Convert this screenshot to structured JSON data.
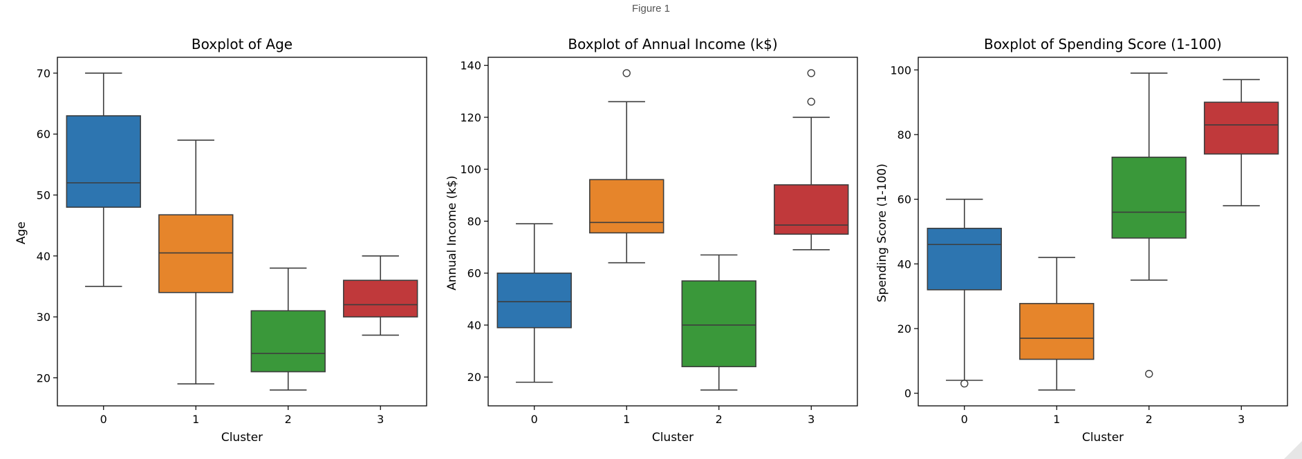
{
  "window": {
    "title": "Figure 1"
  },
  "chart_data": [
    {
      "type": "box",
      "title": "Boxplot of Age",
      "xlabel": "Cluster",
      "ylabel": "Age",
      "ylim": [
        15.4,
        72.6
      ],
      "yticks": [
        20,
        30,
        40,
        50,
        60,
        70
      ],
      "grid": false,
      "categories": [
        "0",
        "1",
        "2",
        "3"
      ],
      "boxes": [
        {
          "cluster": "0",
          "whisker_low": 35,
          "q1": 48,
          "median": 52,
          "q3": 63,
          "whisker_high": 70,
          "outliers": [],
          "color": "#2d75b0"
        },
        {
          "cluster": "1",
          "whisker_low": 19,
          "q1": 34,
          "median": 40.5,
          "q3": 46.75,
          "whisker_high": 59,
          "outliers": [],
          "color": "#e6852b"
        },
        {
          "cluster": "2",
          "whisker_low": 18,
          "q1": 21,
          "median": 24,
          "q3": 31,
          "whisker_high": 38,
          "outliers": [],
          "color": "#3a983a"
        },
        {
          "cluster": "3",
          "whisker_low": 27,
          "q1": 30,
          "median": 32,
          "q3": 36,
          "whisker_high": 40,
          "outliers": [],
          "color": "#c0393b"
        }
      ]
    },
    {
      "type": "box",
      "title": "Boxplot of Annual Income (k$)",
      "xlabel": "Cluster",
      "ylabel": "Annual Income (k$)",
      "ylim": [
        8.9,
        143.1
      ],
      "yticks": [
        20,
        40,
        60,
        80,
        100,
        120,
        140
      ],
      "grid": false,
      "categories": [
        "0",
        "1",
        "2",
        "3"
      ],
      "boxes": [
        {
          "cluster": "0",
          "whisker_low": 18,
          "q1": 39,
          "median": 49,
          "q3": 60,
          "whisker_high": 79,
          "outliers": [],
          "color": "#2d75b0"
        },
        {
          "cluster": "1",
          "whisker_low": 64,
          "q1": 75.5,
          "median": 79.5,
          "q3": 96,
          "whisker_high": 126,
          "outliers": [
            137
          ],
          "color": "#e6852b"
        },
        {
          "cluster": "2",
          "whisker_low": 15,
          "q1": 24,
          "median": 40,
          "q3": 57,
          "whisker_high": 67,
          "outliers": [],
          "color": "#3a983a"
        },
        {
          "cluster": "3",
          "whisker_low": 69,
          "q1": 75,
          "median": 78.5,
          "q3": 94,
          "whisker_high": 120,
          "outliers": [
            126,
            137
          ],
          "color": "#c0393b"
        }
      ]
    },
    {
      "type": "box",
      "title": "Boxplot of Spending Score (1-100)",
      "xlabel": "Cluster",
      "ylabel": "Spending Score (1-100)",
      "ylim": [
        -3.9,
        103.9
      ],
      "yticks": [
        0,
        20,
        40,
        60,
        80,
        100
      ],
      "grid": false,
      "categories": [
        "0",
        "1",
        "2",
        "3"
      ],
      "boxes": [
        {
          "cluster": "0",
          "whisker_low": 4,
          "q1": 32,
          "median": 46,
          "q3": 51,
          "whisker_high": 60,
          "outliers": [
            3
          ],
          "color": "#2d75b0"
        },
        {
          "cluster": "1",
          "whisker_low": 1,
          "q1": 10.5,
          "median": 17,
          "q3": 27.75,
          "whisker_high": 42,
          "outliers": [],
          "color": "#e6852b"
        },
        {
          "cluster": "2",
          "whisker_low": 35,
          "q1": 48,
          "median": 56,
          "q3": 73,
          "whisker_high": 99,
          "outliers": [
            6
          ],
          "color": "#3a983a"
        },
        {
          "cluster": "3",
          "whisker_low": 58,
          "q1": 74,
          "median": 83,
          "q3": 90,
          "whisker_high": 97,
          "outliers": [],
          "color": "#c0393b"
        }
      ]
    }
  ]
}
